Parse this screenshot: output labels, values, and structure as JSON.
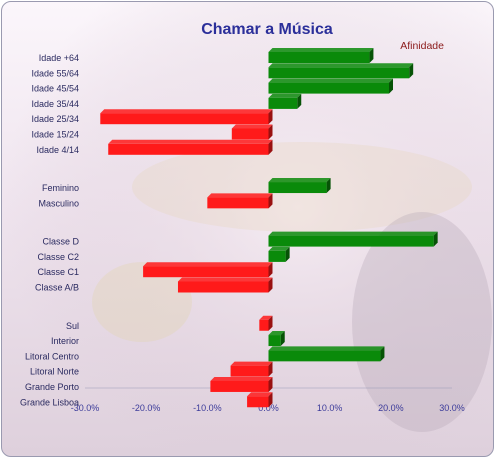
{
  "chart_data": {
    "type": "bar",
    "orientation": "horizontal",
    "title": "Chamar a Música",
    "legend": "Afinidade",
    "legend_position": "top-right",
    "xlim": [
      -0.3,
      0.3
    ],
    "x_ticks": [
      "-30.0%",
      "-20.0%",
      "-10.0%",
      "0.0%",
      "10.0%",
      "20.0%",
      "30.0%"
    ],
    "positive_color": "#0a8a0a",
    "negative_color": "#ff1a1a",
    "groups": [
      {
        "categories": [
          "Idade +64",
          "Idade 55/64",
          "Idade 45/54",
          "Idade 35/44",
          "Idade 25/34",
          "Idade 15/24",
          "Idade 4/14"
        ],
        "values": [
          0.165,
          0.23,
          0.197,
          0.047,
          -0.275,
          -0.06,
          -0.262
        ]
      },
      {
        "categories": [
          "Feminino",
          "Masculino"
        ],
        "values": [
          0.095,
          -0.1
        ]
      },
      {
        "categories": [
          "Classe D",
          "Classe C2",
          "Classe C1",
          "Classe A/B"
        ],
        "values": [
          0.27,
          0.028,
          -0.205,
          -0.148
        ]
      },
      {
        "categories": [
          "Sul",
          "Interior",
          "Litoral Centro",
          "Litoral Norte",
          "Grande Porto",
          "Grande Lisboa"
        ],
        "values": [
          -0.015,
          0.02,
          0.183,
          -0.062,
          -0.095,
          -0.035
        ]
      }
    ]
  }
}
